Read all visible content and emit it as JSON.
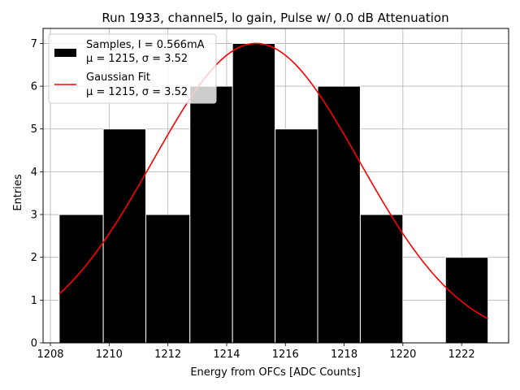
{
  "chart_data": {
    "type": "bar",
    "title": "Run 1933, channel5, lo gain, Pulse w/ 0.0 dB Attenuation",
    "xlabel": "Energy from OFCs [ADC Counts]",
    "ylabel": "Entries",
    "xlim": [
      1207.75,
      1223.6
    ],
    "ylim": [
      0,
      7.35
    ],
    "xticks": [
      1208,
      1210,
      1212,
      1214,
      1216,
      1218,
      1220,
      1222
    ],
    "yticks": [
      0,
      1,
      2,
      3,
      4,
      5,
      6,
      7
    ],
    "grid": true,
    "legend_position": "top-left",
    "histogram": {
      "name": "Samples, I = 0.566mA",
      "stats": "μ = 1215, σ = 3.52",
      "color": "#000000",
      "edge_color": "#ffffff",
      "bins": [
        {
          "x0": 1208.3,
          "x1": 1209.8,
          "count": 3
        },
        {
          "x0": 1209.8,
          "x1": 1211.25,
          "count": 5
        },
        {
          "x0": 1211.25,
          "x1": 1212.75,
          "count": 3
        },
        {
          "x0": 1212.75,
          "x1": 1214.2,
          "count": 6
        },
        {
          "x0": 1214.2,
          "x1": 1215.65,
          "count": 7
        },
        {
          "x0": 1215.65,
          "x1": 1217.1,
          "count": 5
        },
        {
          "x0": 1217.1,
          "x1": 1218.55,
          "count": 6
        },
        {
          "x0": 1218.55,
          "x1": 1220.0,
          "count": 3
        },
        {
          "x0": 1220.0,
          "x1": 1221.45,
          "count": 0
        },
        {
          "x0": 1221.45,
          "x1": 1222.9,
          "count": 2
        }
      ]
    },
    "fit": {
      "name": "Gaussian Fit",
      "stats": "μ = 1215, σ = 3.52",
      "color": "#ff0000",
      "amplitude": 7.0,
      "mu": 1215,
      "sigma": 3.52,
      "x_range": [
        1208.3,
        1222.9
      ]
    }
  }
}
